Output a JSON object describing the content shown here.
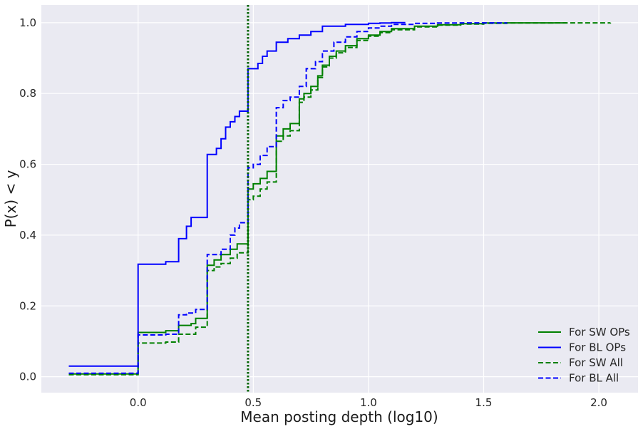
{
  "chart_data": {
    "type": "line",
    "title": "",
    "xlabel": "Mean posting depth (log10)",
    "ylabel": "P(x) < y",
    "xlim": [
      -0.42,
      2.17
    ],
    "ylim": [
      -0.045,
      1.05
    ],
    "xticks": [
      0.0,
      0.5,
      1.0,
      1.5,
      2.0
    ],
    "xtick_labels": [
      "0.0",
      "0.5",
      "1.0",
      "1.5",
      "2.0"
    ],
    "yticks": [
      0.0,
      0.2,
      0.4,
      0.6,
      0.8,
      1.0
    ],
    "ytick_labels": [
      "0.0",
      "0.2",
      "0.4",
      "0.6",
      "0.8",
      "1.0"
    ],
    "grid": true,
    "legend_position": "bottom-right",
    "vline": {
      "x": 0.477,
      "color": "#006400",
      "style": "dotted"
    },
    "series": [
      {
        "name": "For SW OPs",
        "color": "#008000",
        "dash": "solid",
        "x": [
          -0.301,
          0.0,
          0.0,
          0.12,
          0.176,
          0.176,
          0.23,
          0.25,
          0.3,
          0.3,
          0.33,
          0.36,
          0.4,
          0.43,
          0.477,
          0.477,
          0.5,
          0.53,
          0.56,
          0.6,
          0.6,
          0.63,
          0.66,
          0.7,
          0.7,
          0.72,
          0.75,
          0.78,
          0.8,
          0.83,
          0.86,
          0.9,
          0.95,
          1.0,
          1.05,
          1.1,
          1.2,
          1.3,
          1.4,
          1.5,
          1.6,
          1.86
        ],
        "y": [
          0.008,
          0.008,
          0.125,
          0.13,
          0.13,
          0.145,
          0.15,
          0.165,
          0.165,
          0.315,
          0.33,
          0.345,
          0.36,
          0.375,
          0.378,
          0.53,
          0.545,
          0.56,
          0.58,
          0.59,
          0.68,
          0.7,
          0.715,
          0.72,
          0.785,
          0.8,
          0.82,
          0.85,
          0.88,
          0.905,
          0.92,
          0.935,
          0.955,
          0.965,
          0.975,
          0.983,
          0.99,
          0.994,
          0.997,
          0.999,
          0.9995,
          1.0
        ]
      },
      {
        "name": "For BL OPs",
        "color": "#0000ff",
        "dash": "solid",
        "x": [
          -0.301,
          0.0,
          0.0,
          0.12,
          0.176,
          0.176,
          0.21,
          0.23,
          0.3,
          0.3,
          0.34,
          0.36,
          0.38,
          0.4,
          0.42,
          0.44,
          0.46,
          0.477,
          0.477,
          0.52,
          0.54,
          0.56,
          0.6,
          0.65,
          0.7,
          0.75,
          0.8,
          0.9,
          1.0,
          1.05,
          1.1,
          1.16
        ],
        "y": [
          0.03,
          0.03,
          0.318,
          0.325,
          0.325,
          0.39,
          0.425,
          0.45,
          0.45,
          0.628,
          0.645,
          0.672,
          0.705,
          0.72,
          0.735,
          0.75,
          0.75,
          0.75,
          0.87,
          0.885,
          0.905,
          0.92,
          0.945,
          0.955,
          0.965,
          0.975,
          0.99,
          0.995,
          0.998,
          0.999,
          1.0,
          1.0
        ]
      },
      {
        "name": "For SW All",
        "color": "#008000",
        "dash": "dashed",
        "x": [
          -0.301,
          0.0,
          0.0,
          0.12,
          0.176,
          0.176,
          0.25,
          0.3,
          0.3,
          0.33,
          0.36,
          0.4,
          0.43,
          0.477,
          0.477,
          0.5,
          0.53,
          0.56,
          0.6,
          0.6,
          0.63,
          0.66,
          0.7,
          0.7,
          0.72,
          0.75,
          0.78,
          0.8,
          0.83,
          0.86,
          0.9,
          0.95,
          1.0,
          1.05,
          1.1,
          1.2,
          1.3,
          1.4,
          1.5,
          1.6,
          1.8,
          2.05
        ],
        "y": [
          0.006,
          0.006,
          0.095,
          0.098,
          0.098,
          0.12,
          0.14,
          0.14,
          0.3,
          0.31,
          0.32,
          0.335,
          0.35,
          0.36,
          0.5,
          0.51,
          0.53,
          0.55,
          0.56,
          0.665,
          0.68,
          0.695,
          0.705,
          0.775,
          0.79,
          0.81,
          0.845,
          0.875,
          0.9,
          0.915,
          0.93,
          0.95,
          0.962,
          0.972,
          0.98,
          0.988,
          0.993,
          0.996,
          0.998,
          0.999,
          0.9995,
          1.0
        ]
      },
      {
        "name": "For BL All",
        "color": "#0000ff",
        "dash": "dashed",
        "x": [
          -0.301,
          0.0,
          0.0,
          0.12,
          0.176,
          0.176,
          0.21,
          0.25,
          0.3,
          0.3,
          0.36,
          0.4,
          0.42,
          0.44,
          0.477,
          0.477,
          0.5,
          0.53,
          0.56,
          0.6,
          0.6,
          0.63,
          0.66,
          0.7,
          0.73,
          0.77,
          0.8,
          0.85,
          0.9,
          0.95,
          1.0,
          1.05,
          1.1,
          1.2,
          1.3,
          1.4,
          1.6
        ],
        "y": [
          0.01,
          0.01,
          0.118,
          0.12,
          0.12,
          0.175,
          0.18,
          0.19,
          0.19,
          0.345,
          0.36,
          0.4,
          0.42,
          0.435,
          0.435,
          0.59,
          0.6,
          0.625,
          0.65,
          0.66,
          0.76,
          0.78,
          0.79,
          0.82,
          0.87,
          0.89,
          0.92,
          0.945,
          0.96,
          0.975,
          0.985,
          0.99,
          0.995,
          0.998,
          0.999,
          0.9995,
          1.0
        ]
      }
    ]
  }
}
